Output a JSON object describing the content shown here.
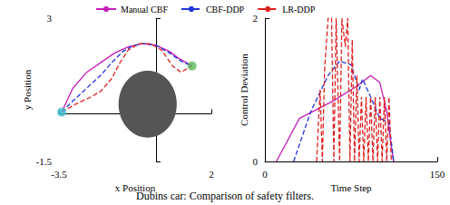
{
  "chart_data": [
    {
      "type": "line",
      "xlabel": "x Position",
      "ylabel": "y Position",
      "xlim": [
        -3.5,
        2
      ],
      "xticks": [
        -3.5,
        2
      ],
      "ylim": [
        -1.5,
        3
      ],
      "yticks": [
        -1.5,
        3
      ],
      "legend": "top",
      "caption": "Dubins car: Comparison of safety filters.",
      "obstacle": {
        "center_x": -0.3,
        "center_y": 0.3,
        "radius": 1.05,
        "color": "#555555"
      },
      "start": {
        "x": -3.4,
        "y": 0.05,
        "color": "#3fc1d6",
        "marker": "circle"
      },
      "goal": {
        "x": 1.3,
        "y": 1.5,
        "color": "#5cb85c",
        "marker": "circle"
      },
      "series": [
        {
          "name": "Manual CBF",
          "color": "#c51fb8",
          "line_style": "solid",
          "x": [
            -3.4,
            -3.0,
            -2.5,
            -2.0,
            -1.5,
            -1.0,
            -0.5,
            0.0,
            0.5,
            0.8,
            1.1,
            1.3
          ],
          "values": [
            0.05,
            0.8,
            1.3,
            1.6,
            1.9,
            2.1,
            2.2,
            2.15,
            1.95,
            1.75,
            1.6,
            1.5
          ]
        },
        {
          "name": "CBF-DDP",
          "color": "#2233dd",
          "line_style": "dashed",
          "x": [
            -3.4,
            -3.0,
            -2.5,
            -2.0,
            -1.6,
            -1.2,
            -0.8,
            -0.4,
            0.0,
            0.5,
            0.9,
            1.3
          ],
          "values": [
            0.05,
            0.4,
            0.8,
            1.2,
            1.6,
            1.95,
            2.15,
            2.2,
            2.15,
            1.9,
            1.65,
            1.5
          ]
        },
        {
          "name": "LR-DDP",
          "color": "#e02020",
          "line_style": "dashed",
          "x": [
            -3.4,
            -2.9,
            -2.4,
            -2.0,
            -1.6,
            -1.3,
            -1.0,
            -0.6,
            -0.2,
            0.2,
            0.6,
            0.9,
            1.3
          ],
          "values": [
            0.05,
            0.3,
            0.5,
            0.7,
            1.1,
            1.6,
            2.0,
            2.2,
            2.2,
            2.0,
            1.5,
            1.3,
            1.5
          ]
        }
      ]
    },
    {
      "type": "line",
      "xlabel": "Time Step",
      "ylabel": "Control Deviation",
      "xlim": [
        0,
        150
      ],
      "xticks": [
        0,
        150
      ],
      "ylim": [
        0,
        2
      ],
      "yticks": [
        0,
        2
      ],
      "series": [
        {
          "name": "Manual CBF",
          "color": "#c51fb8",
          "line_style": "solid",
          "x": [
            10,
            30,
            60,
            80,
            92,
            100,
            106,
            110,
            112
          ],
          "values": [
            0,
            0.6,
            0.85,
            1.05,
            1.2,
            1.1,
            0.7,
            0.2,
            0
          ]
        },
        {
          "name": "CBF-DDP",
          "color": "#2233dd",
          "line_style": "dashed",
          "x": [
            25,
            40,
            55,
            65,
            75,
            82,
            85,
            92,
            100,
            108,
            112
          ],
          "values": [
            0,
            0.7,
            1.2,
            1.4,
            1.35,
            1.0,
            1.15,
            0.9,
            0.6,
            0.55,
            0
          ]
        },
        {
          "name": "LR-DDP",
          "color": "#e02020",
          "line_style": "dashed",
          "x": [
            45,
            48,
            50,
            52,
            55,
            58,
            60,
            62,
            65,
            67,
            70,
            72,
            74,
            76,
            78,
            80,
            82,
            84,
            86,
            88,
            90,
            92,
            94,
            96,
            98,
            100,
            102,
            104,
            106,
            108,
            110
          ],
          "values": [
            0,
            1.0,
            0,
            1.3,
            2.0,
            2.0,
            0,
            2.0,
            0,
            2.0,
            1.6,
            2.0,
            0,
            1.7,
            0,
            1.2,
            0,
            0.9,
            0,
            0.9,
            0,
            0.9,
            0,
            0.9,
            0,
            0.9,
            0,
            0.9,
            0,
            0.9,
            0
          ]
        }
      ]
    }
  ]
}
